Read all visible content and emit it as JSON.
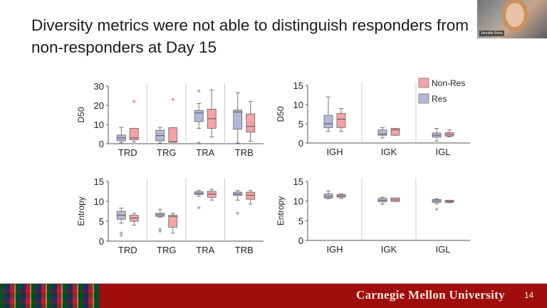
{
  "slide": {
    "title": "Diversity metrics were not able to distinguish responders from non-responders at Day 15",
    "footer_brand": "Carnegie Mellon University",
    "page_number": "14",
    "webcam_name": "Jennifer Bone"
  },
  "colors": {
    "res": "#b3b8d8",
    "nonres": "#f4a3a6",
    "footer": "#a00d0d"
  },
  "legend": [
    {
      "label": "Non-Res",
      "color": "#f4a3a6"
    },
    {
      "label": "Res",
      "color": "#b3b8d8"
    }
  ],
  "chart_data": [
    {
      "type": "box",
      "ylabel": "D50",
      "ylim": [
        0,
        30
      ],
      "yticks": [
        0,
        10,
        20,
        30
      ],
      "categories": [
        "TRD",
        "TRG",
        "TRA",
        "TRB"
      ],
      "res": [
        {
          "min": 0.5,
          "q1": 1.5,
          "med": 3,
          "q3": 4.5,
          "max": 8.5,
          "out": []
        },
        {
          "min": 0.3,
          "q1": 1.5,
          "med": 4.2,
          "q3": 7,
          "max": 8.5,
          "out": []
        },
        {
          "min": 8,
          "q1": 11.5,
          "med": 16,
          "q3": 17.3,
          "max": 21,
          "out": [
            27.5,
            0.5
          ]
        },
        {
          "min": 0.3,
          "q1": 7.5,
          "med": 16.5,
          "q3": 17.5,
          "max": 26.5,
          "out": []
        }
      ],
      "nonres": [
        {
          "min": 1,
          "q1": 2,
          "med": 3,
          "q3": 8,
          "max": 8,
          "out": [
            22
          ]
        },
        {
          "min": 0.8,
          "q1": 0.8,
          "med": 1,
          "q3": 8.3,
          "max": 8.3,
          "out": [
            23
          ]
        },
        {
          "min": 3.5,
          "q1": 8,
          "med": 13,
          "q3": 18,
          "max": 28,
          "out": []
        },
        {
          "min": 1.3,
          "q1": 6,
          "med": 9,
          "q3": 15.5,
          "max": 22,
          "out": []
        }
      ]
    },
    {
      "type": "box",
      "ylabel": "D50",
      "ylim": [
        0,
        15
      ],
      "yticks": [
        0,
        5,
        10,
        15
      ],
      "categories": [
        "IGH",
        "IGK",
        "IGL"
      ],
      "res": [
        {
          "min": 3,
          "q1": 4,
          "med": 5,
          "q3": 7.2,
          "max": 12,
          "out": []
        },
        {
          "min": 1.3,
          "q1": 2,
          "med": 2.3,
          "q3": 3.4,
          "max": 4,
          "out": []
        },
        {
          "min": 0.5,
          "q1": 1.5,
          "med": 2,
          "q3": 2.6,
          "max": 3.8,
          "out": []
        }
      ],
      "nonres": [
        {
          "min": 3,
          "q1": 4,
          "med": 6.2,
          "q3": 7.7,
          "max": 9,
          "out": []
        },
        {
          "min": 2,
          "q1": 2,
          "med": 3.4,
          "q3": 3.8,
          "max": 3.8,
          "out": []
        },
        {
          "min": 1.6,
          "q1": 1.8,
          "med": 2.2,
          "q3": 2.7,
          "max": 3.4,
          "out": []
        }
      ]
    },
    {
      "type": "box",
      "ylabel": "Entropy",
      "ylim": [
        0,
        15
      ],
      "yticks": [
        0,
        5,
        10,
        15
      ],
      "categories": [
        "TRD",
        "TRG",
        "TRA",
        "TRB"
      ],
      "res": [
        {
          "min": 4.5,
          "q1": 5.5,
          "med": 6.5,
          "q3": 7.5,
          "max": 8.3,
          "out": [
            2,
            1.5
          ]
        },
        {
          "min": 6,
          "q1": 6.2,
          "med": 6.6,
          "q3": 7,
          "max": 8,
          "out": [
            3,
            2.5
          ]
        },
        {
          "min": 11.2,
          "q1": 11.7,
          "med": 12,
          "q3": 12.4,
          "max": 12.8,
          "out": [
            8.4
          ]
        },
        {
          "min": 10.3,
          "q1": 11.5,
          "med": 11.8,
          "q3": 12.3,
          "max": 12.7,
          "out": [
            7
          ]
        }
      ],
      "nonres": [
        {
          "min": 4,
          "q1": 5,
          "med": 5.8,
          "q3": 6.5,
          "max": 7,
          "out": []
        },
        {
          "min": 2,
          "q1": 3.5,
          "med": 6.2,
          "q3": 6.5,
          "max": 7,
          "out": []
        },
        {
          "min": 10.3,
          "q1": 11,
          "med": 11.8,
          "q3": 12.5,
          "max": 13,
          "out": []
        },
        {
          "min": 9.3,
          "q1": 10.5,
          "med": 11.5,
          "q3": 12.3,
          "max": 12.7,
          "out": []
        }
      ]
    },
    {
      "type": "box",
      "ylabel": "Entropy",
      "ylim": [
        0,
        15
      ],
      "yticks": [
        0,
        5,
        10,
        15
      ],
      "categories": [
        "IGH",
        "IGK",
        "IGL"
      ],
      "res": [
        {
          "min": 10.6,
          "q1": 10.8,
          "med": 11.2,
          "q3": 11.8,
          "max": 12.6,
          "out": []
        },
        {
          "min": 9.2,
          "q1": 9.8,
          "med": 10.2,
          "q3": 10.7,
          "max": 11,
          "out": []
        },
        {
          "min": 9.3,
          "q1": 9.7,
          "med": 10,
          "q3": 10.4,
          "max": 10.6,
          "out": [
            7.9
          ]
        }
      ],
      "nonres": [
        {
          "min": 10.7,
          "q1": 11,
          "med": 11.3,
          "q3": 11.7,
          "max": 11.8,
          "out": []
        },
        {
          "min": 9.9,
          "q1": 9.9,
          "med": 10.3,
          "q3": 10.8,
          "max": 10.8,
          "out": []
        },
        {
          "min": 9.6,
          "q1": 9.7,
          "med": 9.9,
          "q3": 10.2,
          "max": 10.2,
          "out": []
        }
      ]
    }
  ]
}
